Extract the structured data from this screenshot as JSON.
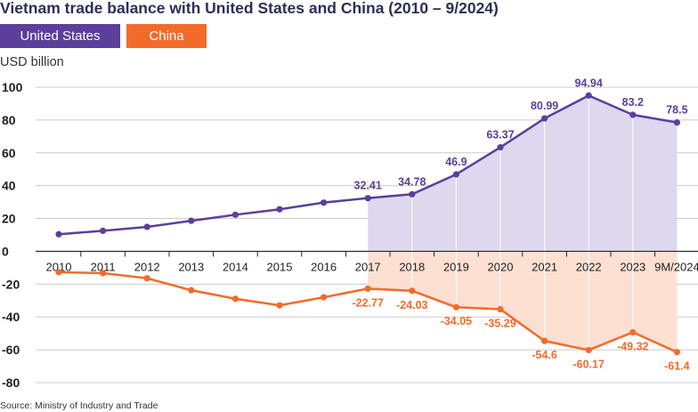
{
  "title": "Vietnam trade balance with United States and China (2010 – 9/2024)",
  "unit": "USD billion",
  "source": "Source: Ministry of Industry and Trade",
  "colors": {
    "us": "#5b3f9a",
    "china": "#f26b2a",
    "us_fill": "#ddd8ee",
    "china_fill": "#fde0d2",
    "grid": "#cccccc",
    "axis": "#222222",
    "text": "#222222"
  },
  "chart_data": {
    "type": "line",
    "title": "Vietnam trade balance with United States and China (2010 – 9/2024)",
    "ylabel": "USD billion",
    "xlabel": "",
    "ylim": [
      -80,
      100
    ],
    "yticks": [
      100,
      80,
      60,
      40,
      20,
      0,
      -20,
      -40,
      -60,
      -80
    ],
    "grid": true,
    "legend": "top-left",
    "categories": [
      "2010",
      "2011",
      "2012",
      "2013",
      "2014",
      "2015",
      "2016",
      "2017",
      "2018",
      "2019",
      "2020",
      "2021",
      "2022",
      "2023",
      "9M/2024"
    ],
    "shaded_from_index": 7,
    "series": [
      {
        "name": "United States",
        "key": "us",
        "values": [
          10.4,
          12.5,
          14.9,
          18.6,
          22.3,
          25.6,
          29.7,
          32.41,
          34.78,
          46.9,
          63.37,
          80.99,
          94.94,
          83.2,
          78.5
        ],
        "labels": [
          "",
          "",
          "",
          "",
          "",
          "",
          "",
          "32.41",
          "34.78",
          "46.9",
          "63.37",
          "80.99",
          "94.94",
          "83.2",
          "78.5"
        ]
      },
      {
        "name": "China",
        "key": "china",
        "values": [
          -12.7,
          -13.3,
          -16.4,
          -23.7,
          -28.9,
          -32.9,
          -28.0,
          -22.77,
          -24.03,
          -34.05,
          -35.29,
          -54.6,
          -60.17,
          -49.32,
          -61.4
        ],
        "labels": [
          "",
          "",
          "",
          "",
          "",
          "",
          "",
          "-22.77",
          "-24.03",
          "-34.05",
          "-35.29",
          "-54.6",
          "-60.17",
          "-49.32",
          "-61.4"
        ]
      }
    ]
  }
}
